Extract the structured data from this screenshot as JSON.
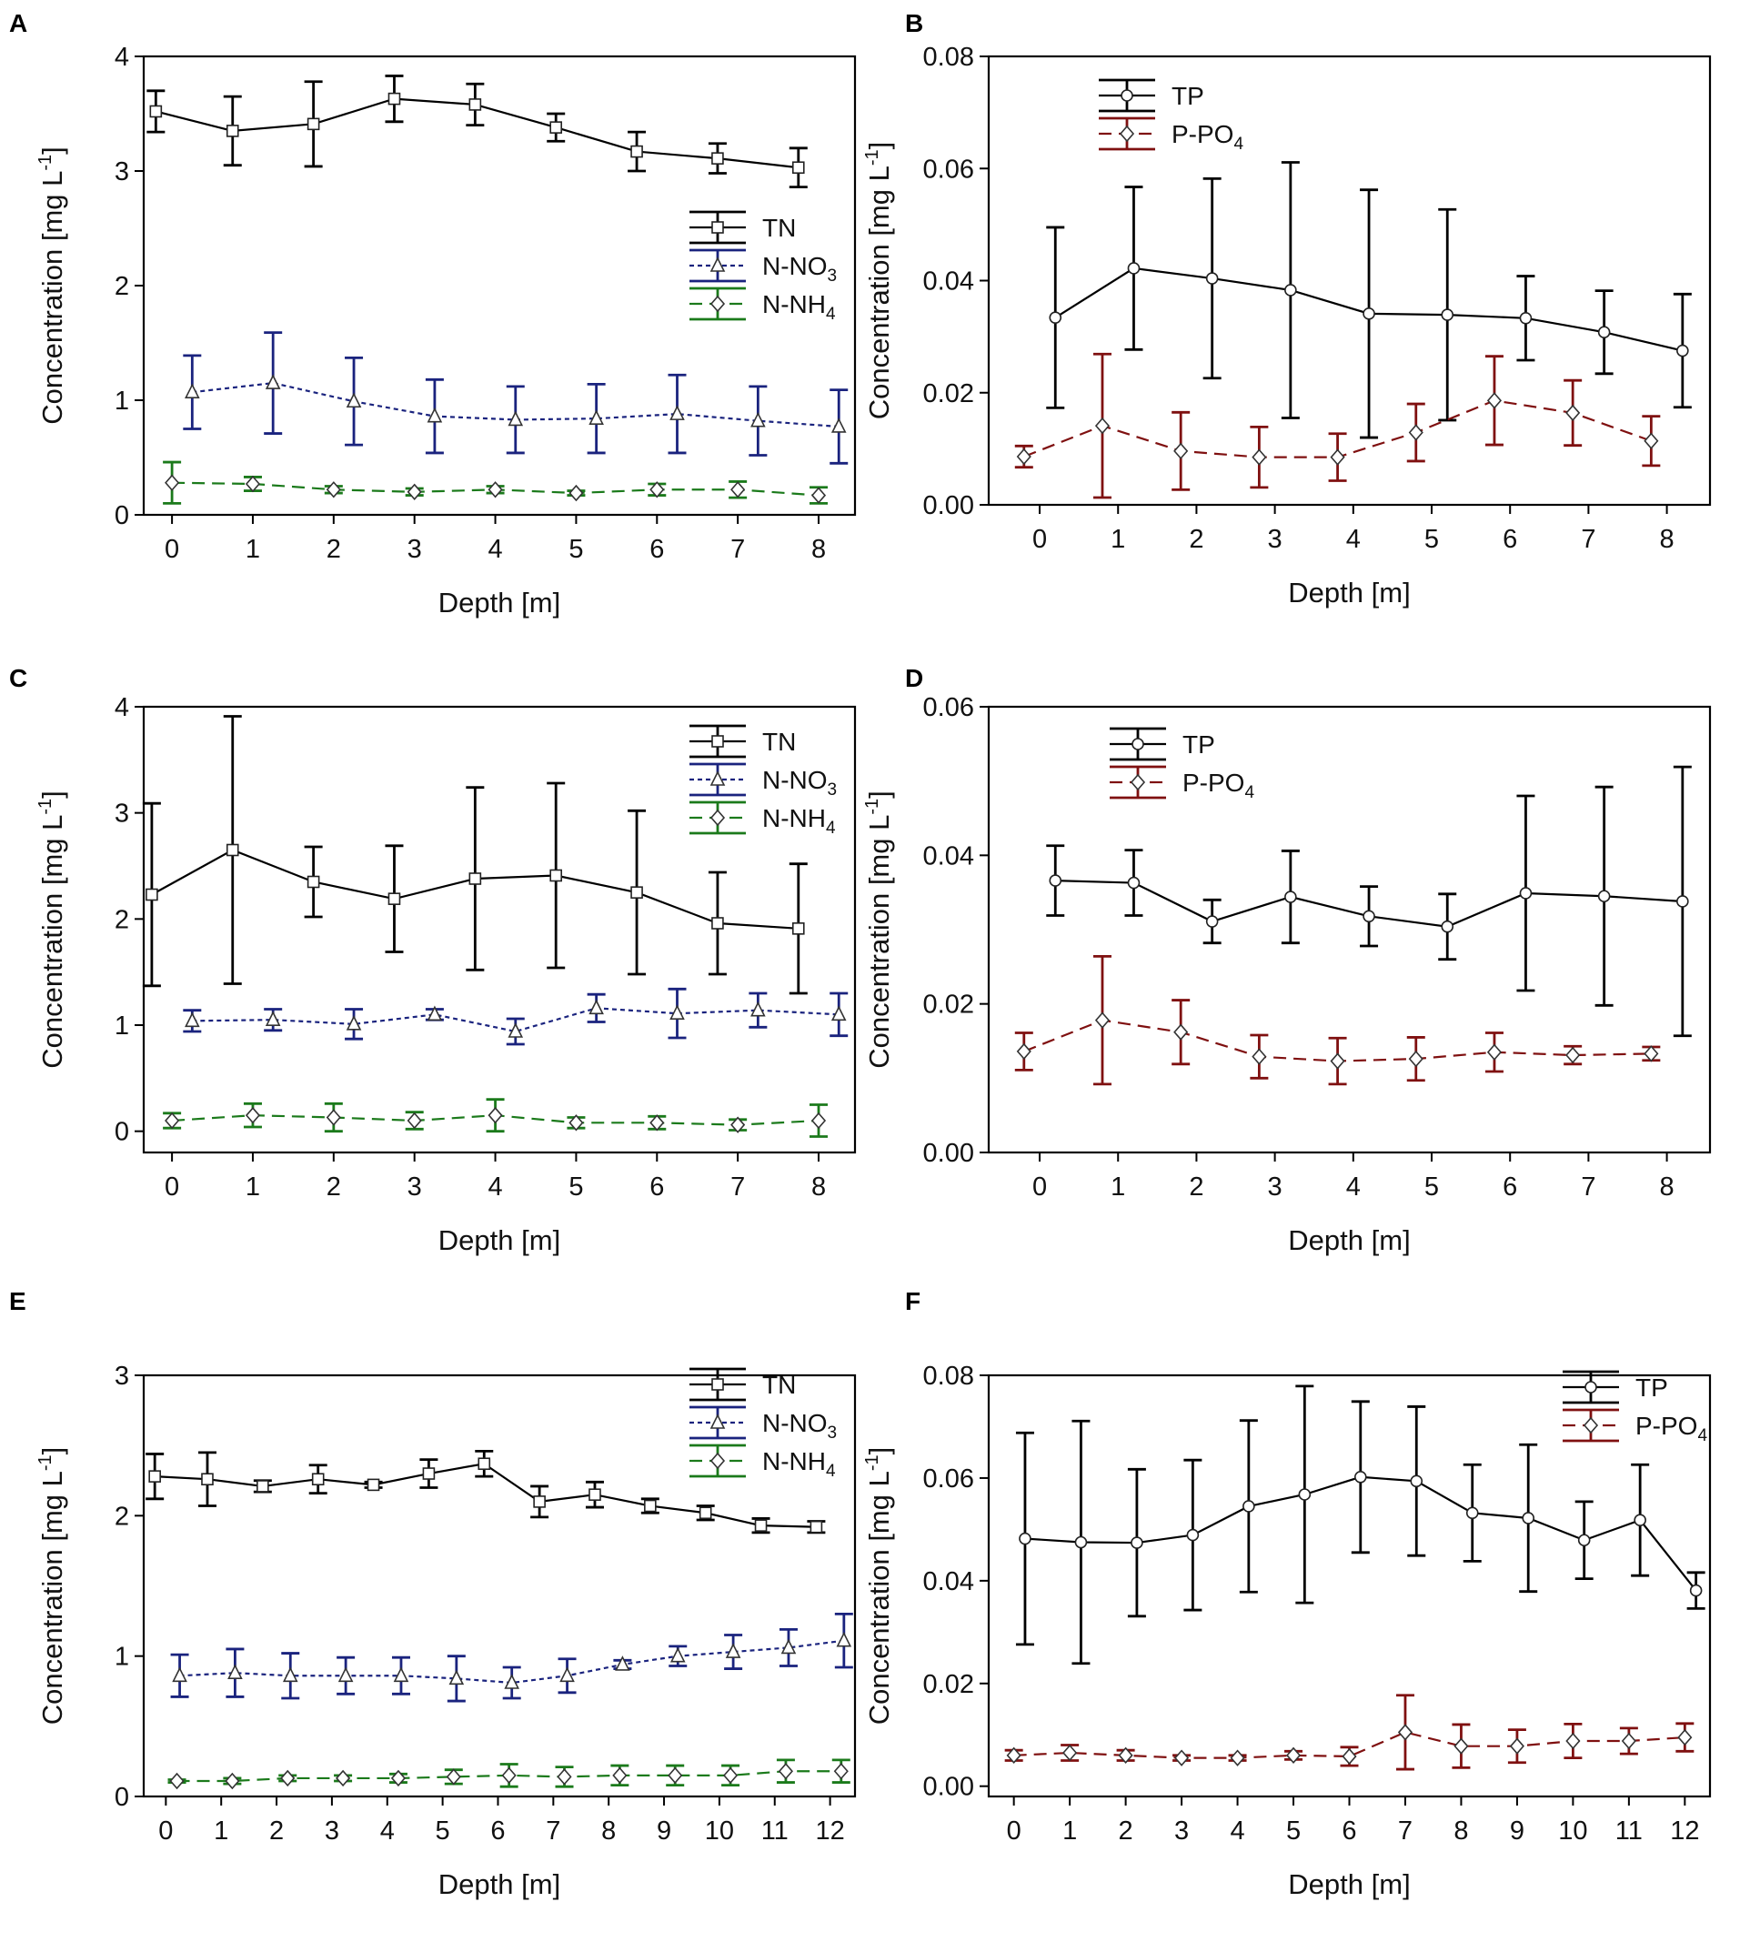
{
  "chart_data": [
    {
      "panel": "A",
      "type": "line",
      "xlabel": "Depth [m]",
      "ylabel": "Concentration [mg L-1]",
      "ylabel_base": "Concentration [mg L",
      "ylabel_sup": "-1",
      "ylabel_close": "]",
      "xlim": [
        -0.35,
        8.45
      ],
      "ylim": [
        0,
        4
      ],
      "xticks": [
        0,
        1,
        2,
        3,
        4,
        5,
        6,
        7,
        8
      ],
      "yticks": [
        0,
        1,
        2,
        3,
        4
      ],
      "ytick_labels": [
        "0",
        "1",
        "2",
        "3",
        "4"
      ],
      "legend_position": "right-middle",
      "series": [
        {
          "name": "TN",
          "label_base": "TN",
          "label_sub": "",
          "color": "#000000",
          "marker": "square",
          "dash": "solid",
          "x": [
            -0.2,
            0.75,
            1.75,
            2.75,
            3.75,
            4.75,
            5.75,
            6.75,
            7.75
          ],
          "y": [
            3.52,
            3.35,
            3.41,
            3.63,
            3.58,
            3.38,
            3.17,
            3.11,
            3.03
          ],
          "err": [
            0.18,
            0.3,
            0.37,
            0.2,
            0.18,
            0.12,
            0.17,
            0.13,
            0.17
          ]
        },
        {
          "name": "N-NO3",
          "label_base": "N-NO",
          "label_sub": "3",
          "color": "#1a237e",
          "marker": "triangle",
          "dash": "dot",
          "x": [
            0.25,
            1.25,
            2.25,
            3.25,
            4.25,
            5.25,
            6.25,
            7.25,
            8.25
          ],
          "y": [
            1.07,
            1.15,
            0.99,
            0.86,
            0.83,
            0.84,
            0.88,
            0.82,
            0.77
          ],
          "err": [
            0.32,
            0.44,
            0.38,
            0.32,
            0.29,
            0.3,
            0.34,
            0.3,
            0.32
          ]
        },
        {
          "name": "N-NH4",
          "label_base": "N-NH",
          "label_sub": "4",
          "color": "#1b7a1b",
          "marker": "diamond",
          "dash": "dash",
          "x": [
            0,
            1,
            2,
            3,
            4,
            5,
            6,
            7,
            8
          ],
          "y": [
            0.28,
            0.27,
            0.22,
            0.2,
            0.22,
            0.19,
            0.22,
            0.22,
            0.17
          ],
          "err": [
            0.18,
            0.06,
            0.03,
            0.03,
            0.03,
            0.02,
            0.05,
            0.07,
            0.07
          ]
        }
      ]
    },
    {
      "panel": "B",
      "type": "line",
      "xlabel": "Depth [m]",
      "ylabel": "Concentration [mg L-1]",
      "ylabel_base": "Concentration [mg L",
      "ylabel_sup": "-1",
      "ylabel_close": "]",
      "xlim": [
        -0.65,
        8.55
      ],
      "ylim": [
        0,
        0.08
      ],
      "xticks": [
        0,
        1,
        2,
        3,
        4,
        5,
        6,
        7,
        8
      ],
      "yticks": [
        0,
        0.02,
        0.04,
        0.06,
        0.08
      ],
      "ytick_labels": [
        "0.00",
        "0.02",
        "0.04",
        "0.06",
        "0.08"
      ],
      "legend_position": "top-left",
      "series": [
        {
          "name": "TP",
          "label_base": "TP",
          "label_sub": "",
          "color": "#000000",
          "marker": "circle",
          "dash": "solid",
          "x": [
            0.2,
            1.2,
            2.2,
            3.2,
            4.2,
            5.2,
            6.2,
            7.2,
            8.2
          ],
          "y": [
            0.0334,
            0.0422,
            0.0404,
            0.0383,
            0.0341,
            0.0339,
            0.0333,
            0.0308,
            0.0275
          ],
          "err": [
            0.0161,
            0.0145,
            0.0178,
            0.0228,
            0.0221,
            0.0188,
            0.0075,
            0.0074,
            0.0101
          ]
        },
        {
          "name": "P-PO4",
          "label_base": "P-PO",
          "label_sub": "4",
          "color": "#7f1010",
          "marker": "diamond",
          "dash": "dash",
          "x": [
            -0.2,
            0.8,
            1.8,
            2.8,
            3.8,
            4.8,
            5.8,
            6.8,
            7.8
          ],
          "y": [
            0.0086,
            0.0141,
            0.0096,
            0.0085,
            0.0085,
            0.0129,
            0.0186,
            0.0164,
            0.0114
          ],
          "err": [
            0.0019,
            0.0128,
            0.0069,
            0.0054,
            0.0042,
            0.0051,
            0.0079,
            0.0058,
            0.0044
          ]
        }
      ]
    },
    {
      "panel": "C",
      "type": "line",
      "xlabel": "Depth [m]",
      "ylabel": "Concentration [mg L-1]",
      "ylabel_base": "Concentration [mg L",
      "ylabel_sup": "-1",
      "ylabel_close": "]",
      "xlim": [
        -0.35,
        8.45
      ],
      "ylim": [
        -0.2,
        4
      ],
      "xticks": [
        0,
        1,
        2,
        3,
        4,
        5,
        6,
        7,
        8
      ],
      "yticks": [
        0,
        1,
        2,
        3,
        4
      ],
      "ytick_labels": [
        "0",
        "1",
        "2",
        "3",
        "4"
      ],
      "legend_position": "top-right",
      "series": [
        {
          "name": "TN",
          "label_base": "TN",
          "label_sub": "",
          "color": "#000000",
          "marker": "square",
          "dash": "solid",
          "x": [
            -0.25,
            0.75,
            1.75,
            2.75,
            3.75,
            4.75,
            5.75,
            6.75,
            7.75
          ],
          "y": [
            2.23,
            2.65,
            2.35,
            2.19,
            2.38,
            2.41,
            2.25,
            1.96,
            1.91
          ],
          "err": [
            0.86,
            1.26,
            0.33,
            0.5,
            0.86,
            0.87,
            0.77,
            0.48,
            0.61
          ]
        },
        {
          "name": "N-NO3",
          "label_base": "N-NO",
          "label_sub": "3",
          "color": "#1a237e",
          "marker": "triangle",
          "dash": "dot",
          "x": [
            0.25,
            1.25,
            2.25,
            3.25,
            4.25,
            5.25,
            6.25,
            7.25,
            8.25
          ],
          "y": [
            1.04,
            1.05,
            1.01,
            1.1,
            0.94,
            1.16,
            1.11,
            1.14,
            1.1
          ],
          "err": [
            0.1,
            0.1,
            0.14,
            0.05,
            0.12,
            0.13,
            0.23,
            0.16,
            0.2
          ]
        },
        {
          "name": "N-NH4",
          "label_base": "N-NH",
          "label_sub": "4",
          "color": "#1b7a1b",
          "marker": "diamond",
          "dash": "dash",
          "x": [
            0,
            1,
            2,
            3,
            4,
            5,
            6,
            7,
            8
          ],
          "y": [
            0.1,
            0.15,
            0.13,
            0.1,
            0.15,
            0.08,
            0.08,
            0.06,
            0.1
          ],
          "err": [
            0.07,
            0.11,
            0.13,
            0.08,
            0.15,
            0.05,
            0.06,
            0.05,
            0.15
          ]
        }
      ]
    },
    {
      "panel": "D",
      "type": "line",
      "xlabel": "Depth [m]",
      "ylabel": "Concentration [mg L-1]",
      "ylabel_base": "Concentration [mg L",
      "ylabel_sup": "-1",
      "ylabel_close": "]",
      "xlim": [
        -0.65,
        8.55
      ],
      "ylim": [
        0,
        0.06
      ],
      "xticks": [
        0,
        1,
        2,
        3,
        4,
        5,
        6,
        7,
        8
      ],
      "yticks": [
        0,
        0.02,
        0.04,
        0.06
      ],
      "ytick_labels": [
        "0.00",
        "0.02",
        "0.04",
        "0.06"
      ],
      "legend_position": "top-left",
      "series": [
        {
          "name": "TP",
          "label_base": "TP",
          "label_sub": "",
          "color": "#000000",
          "marker": "circle",
          "dash": "solid",
          "x": [
            0.2,
            1.2,
            2.2,
            3.2,
            4.2,
            5.2,
            6.2,
            7.2,
            8.2
          ],
          "y": [
            0.0366,
            0.0363,
            0.0311,
            0.0344,
            0.0318,
            0.0304,
            0.0349,
            0.0345,
            0.0338
          ],
          "err": [
            0.0047,
            0.0044,
            0.0029,
            0.0062,
            0.004,
            0.0044,
            0.0131,
            0.0147,
            0.0181
          ]
        },
        {
          "name": "P-PO4",
          "label_base": "P-PO",
          "label_sub": "4",
          "color": "#7f1010",
          "marker": "diamond",
          "dash": "dash",
          "x": [
            -0.2,
            0.8,
            1.8,
            2.8,
            3.8,
            4.8,
            5.8,
            6.8,
            7.8
          ],
          "y": [
            0.0136,
            0.0178,
            0.0162,
            0.0129,
            0.0123,
            0.0126,
            0.0135,
            0.0131,
            0.0133
          ],
          "err": [
            0.0025,
            0.0086,
            0.0043,
            0.0029,
            0.0031,
            0.0029,
            0.0026,
            0.0012,
            0.0009
          ]
        }
      ]
    },
    {
      "panel": "E",
      "type": "line",
      "xlabel": "Depth [m]",
      "ylabel": "Concentration [mg L-1]",
      "ylabel_base": "Concentration [mg L",
      "ylabel_sup": "-1",
      "ylabel_close": "]",
      "xlim": [
        -0.4,
        12.45
      ],
      "ylim": [
        0,
        3
      ],
      "xticks": [
        0,
        1,
        2,
        3,
        4,
        5,
        6,
        7,
        8,
        9,
        10,
        11,
        12
      ],
      "yticks": [
        0,
        1,
        2,
        3
      ],
      "ytick_labels": [
        "0",
        "1",
        "2",
        "3"
      ],
      "legend_position": "top-right",
      "series": [
        {
          "name": "TN",
          "label_base": "TN",
          "label_sub": "",
          "color": "#000000",
          "marker": "square",
          "dash": "solid",
          "x": [
            -0.2,
            0.75,
            1.75,
            2.75,
            3.75,
            4.75,
            5.75,
            6.75,
            7.75,
            8.75,
            9.75,
            10.75,
            11.75
          ],
          "y": [
            2.28,
            2.26,
            2.21,
            2.26,
            2.22,
            2.3,
            2.37,
            2.1,
            2.15,
            2.07,
            2.02,
            1.93,
            1.92
          ],
          "err": [
            0.16,
            0.19,
            0.04,
            0.1,
            0.02,
            0.1,
            0.09,
            0.11,
            0.09,
            0.05,
            0.05,
            0.05,
            0.04
          ]
        },
        {
          "name": "N-NO3",
          "label_base": "N-NO",
          "label_sub": "3",
          "color": "#1a237e",
          "marker": "triangle",
          "dash": "dot",
          "x": [
            0.25,
            1.25,
            2.25,
            3.25,
            4.25,
            5.25,
            6.25,
            7.25,
            8.25,
            9.25,
            10.25,
            11.25,
            12.25
          ],
          "y": [
            0.86,
            0.88,
            0.86,
            0.86,
            0.86,
            0.84,
            0.81,
            0.86,
            0.94,
            1.0,
            1.03,
            1.06,
            1.11
          ],
          "err": [
            0.15,
            0.17,
            0.16,
            0.13,
            0.13,
            0.16,
            0.11,
            0.12,
            0.03,
            0.07,
            0.12,
            0.13,
            0.19
          ]
        },
        {
          "name": "N-NH4",
          "label_base": "N-NH",
          "label_sub": "4",
          "color": "#1b7a1b",
          "marker": "diamond",
          "dash": "dash",
          "x": [
            0.2,
            1.2,
            2.2,
            3.2,
            4.2,
            5.2,
            6.2,
            7.2,
            8.2,
            9.2,
            10.2,
            11.2,
            12.2
          ],
          "y": [
            0.11,
            0.11,
            0.13,
            0.13,
            0.13,
            0.14,
            0.15,
            0.14,
            0.15,
            0.15,
            0.15,
            0.18,
            0.18
          ],
          "err": [
            0.01,
            0.02,
            0.02,
            0.02,
            0.03,
            0.05,
            0.08,
            0.07,
            0.07,
            0.07,
            0.07,
            0.08,
            0.08
          ]
        }
      ]
    },
    {
      "panel": "F",
      "type": "line",
      "xlabel": "Depth [m]",
      "ylabel": "Concentration [mg L-1]",
      "ylabel_base": "Concentration [mg L",
      "ylabel_sup": "-1",
      "ylabel_close": "]",
      "xlim": [
        -0.45,
        12.45
      ],
      "ylim": [
        -0.002,
        0.08
      ],
      "xticks": [
        0,
        1,
        2,
        3,
        4,
        5,
        6,
        7,
        8,
        9,
        10,
        11,
        12
      ],
      "yticks": [
        0,
        0.02,
        0.04,
        0.06,
        0.08
      ],
      "ytick_labels": [
        "0.00",
        "0.02",
        "0.04",
        "0.06",
        "0.08"
      ],
      "legend_position": "top-right",
      "series": [
        {
          "name": "TP",
          "label_base": "TP",
          "label_sub": "",
          "color": "#000000",
          "marker": "circle",
          "dash": "solid",
          "x": [
            0.2,
            1.2,
            2.2,
            3.2,
            4.2,
            5.2,
            6.2,
            7.2,
            8.2,
            9.2,
            10.2,
            11.2,
            12.2
          ],
          "y": [
            0.0482,
            0.0475,
            0.0474,
            0.0489,
            0.0545,
            0.0568,
            0.0602,
            0.0594,
            0.0532,
            0.0522,
            0.0479,
            0.0518,
            0.0381
          ],
          "err": [
            0.0206,
            0.0236,
            0.0143,
            0.0146,
            0.0167,
            0.0211,
            0.0147,
            0.0145,
            0.0094,
            0.0143,
            0.0075,
            0.0108,
            0.0035
          ]
        },
        {
          "name": "P-PO4",
          "label_base": "P-PO",
          "label_sub": "4",
          "color": "#7f1010",
          "marker": "diamond",
          "dash": "dash",
          "x": [
            0,
            1,
            2,
            3,
            4,
            5,
            6,
            7,
            8,
            9,
            10,
            11,
            12
          ],
          "y": [
            0.006,
            0.0065,
            0.006,
            0.0055,
            0.0055,
            0.006,
            0.0058,
            0.0105,
            0.0078,
            0.0078,
            0.0088,
            0.0088,
            0.0095
          ],
          "err": [
            0.001,
            0.0015,
            0.001,
            0.0005,
            0.0005,
            0.0008,
            0.0018,
            0.0072,
            0.0042,
            0.0032,
            0.0033,
            0.0025,
            0.0027
          ]
        }
      ]
    }
  ]
}
